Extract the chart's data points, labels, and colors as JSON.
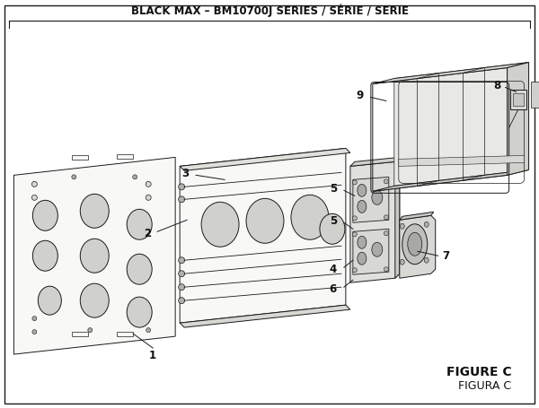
{
  "title": "BLACK MAX – BM10700J SERIES / SÉRIE / SERIE",
  "figure_label": "FIGURE C",
  "figure_label2": "FIGURA C",
  "bg_color": "#ffffff",
  "border_color": "#1a1a1a",
  "text_color": "#111111",
  "title_fontsize": 8.5,
  "fig_width": 6.0,
  "fig_height": 4.55,
  "dpi": 100
}
